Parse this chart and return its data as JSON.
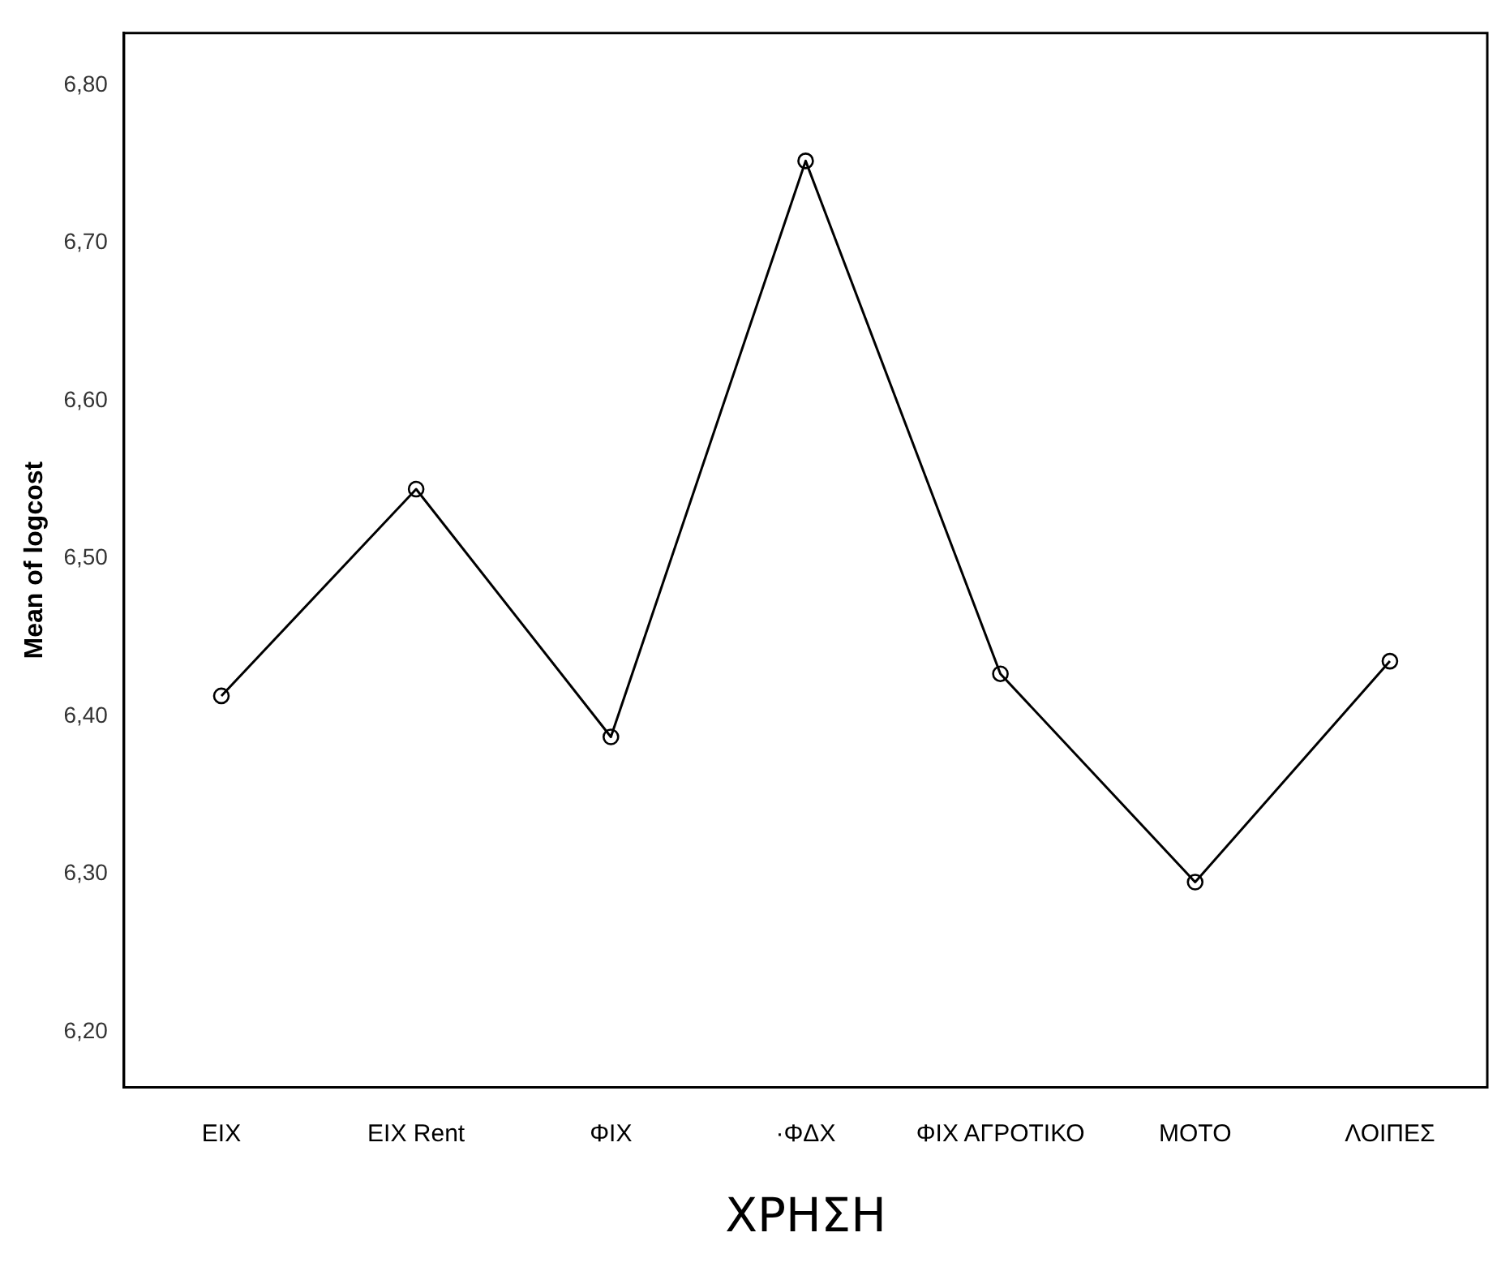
{
  "chart_data": {
    "type": "line",
    "xlabel": "ΧΡΗΣΗ",
    "ylabel": "Mean of logcost",
    "categories": [
      "ΕΙΧ",
      "ΕΙΧ Rent",
      "ΦΙΧ",
      "·ΦΔΧ",
      "ΦΙΧ ΑΓΡΟΤΙΚΟ",
      "ΜΟΤΟ",
      "ΛΟΙΠΕΣ"
    ],
    "series": [
      {
        "color": "#000000",
        "values": [
          6.413,
          6.544,
          6.387,
          6.752,
          6.427,
          6.295,
          6.435
        ]
      }
    ],
    "ylim": [
      6.165,
      6.833
    ],
    "yticks": [
      {
        "value": 6.2,
        "label": "6,20"
      },
      {
        "value": 6.3,
        "label": "6,30"
      },
      {
        "value": 6.4,
        "label": "6,40"
      },
      {
        "value": 6.5,
        "label": "6,50"
      },
      {
        "value": 6.6,
        "label": "6,60"
      },
      {
        "value": 6.7,
        "label": "6,70"
      },
      {
        "value": 6.8,
        "label": "6,80"
      }
    ],
    "grid": false,
    "legend": false,
    "marker": "circle",
    "line_style": "solid"
  }
}
